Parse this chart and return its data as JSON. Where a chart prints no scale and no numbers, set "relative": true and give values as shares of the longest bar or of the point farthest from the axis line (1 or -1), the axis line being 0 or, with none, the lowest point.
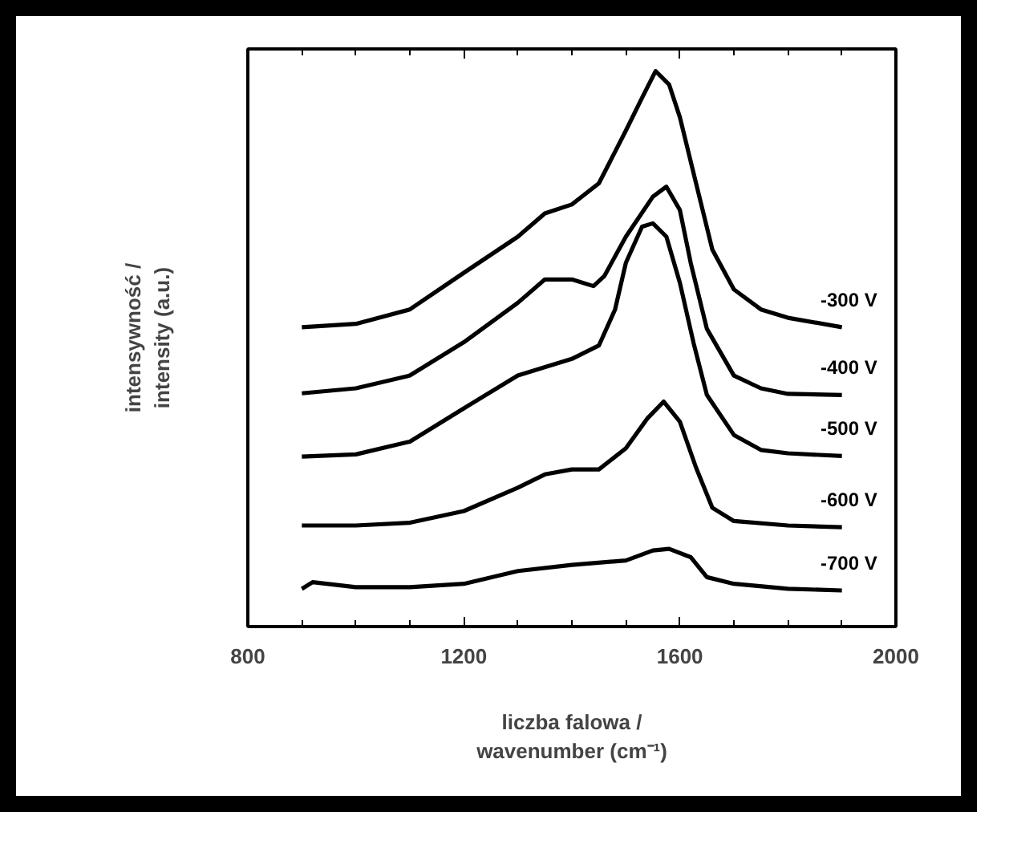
{
  "chart_data": {
    "type": "line",
    "relative": true,
    "xlabel": "liczba falowa /\nwavenumber (cm⁻¹)",
    "ylabel": "intensywność /\nintensity (a.u.)",
    "xlim": [
      800,
      2000
    ],
    "xticks": [
      800,
      1200,
      1600,
      2000
    ],
    "grid": false,
    "marker": "none",
    "line_style": "solid",
    "series": [
      {
        "name": "-300 V",
        "color": "#000000",
        "x": [
          900,
          1000,
          1100,
          1200,
          1300,
          1350,
          1400,
          1450,
          1500,
          1530,
          1555,
          1580,
          1600,
          1630,
          1660,
          1700,
          1750,
          1800,
          1900
        ],
        "values": [
          0.539,
          0.545,
          0.571,
          0.637,
          0.702,
          0.744,
          0.76,
          0.798,
          0.893,
          0.952,
          1.0,
          0.976,
          0.917,
          0.798,
          0.679,
          0.607,
          0.571,
          0.556,
          0.539
        ]
      },
      {
        "name": "-400 V",
        "color": "#000000",
        "x": [
          900,
          1000,
          1100,
          1200,
          1300,
          1350,
          1400,
          1440,
          1460,
          1500,
          1550,
          1575,
          1600,
          1620,
          1650,
          1700,
          1750,
          1800,
          1900
        ],
        "values": [
          0.42,
          0.429,
          0.452,
          0.512,
          0.583,
          0.625,
          0.625,
          0.613,
          0.631,
          0.702,
          0.774,
          0.792,
          0.75,
          0.655,
          0.536,
          0.452,
          0.429,
          0.419,
          0.417
        ]
      },
      {
        "name": "-500 V",
        "color": "#000000",
        "x": [
          900,
          1000,
          1100,
          1200,
          1300,
          1400,
          1450,
          1480,
          1500,
          1530,
          1550,
          1575,
          1600,
          1625,
          1650,
          1700,
          1750,
          1800,
          1900
        ],
        "values": [
          0.306,
          0.31,
          0.333,
          0.393,
          0.452,
          0.482,
          0.506,
          0.571,
          0.655,
          0.72,
          0.726,
          0.702,
          0.619,
          0.512,
          0.417,
          0.345,
          0.318,
          0.312,
          0.307
        ]
      },
      {
        "name": "-600 V",
        "color": "#000000",
        "x": [
          900,
          1000,
          1100,
          1200,
          1300,
          1350,
          1400,
          1450,
          1500,
          1540,
          1570,
          1600,
          1630,
          1660,
          1700,
          1800,
          1900
        ],
        "values": [
          0.182,
          0.182,
          0.187,
          0.208,
          0.25,
          0.274,
          0.283,
          0.283,
          0.321,
          0.375,
          0.405,
          0.369,
          0.286,
          0.214,
          0.19,
          0.182,
          0.179
        ]
      },
      {
        "name": "-700 V",
        "color": "#000000",
        "x": [
          900,
          920,
          1000,
          1100,
          1200,
          1300,
          1400,
          1500,
          1550,
          1580,
          1620,
          1650,
          1700,
          1800,
          1900
        ],
        "values": [
          0.068,
          0.08,
          0.071,
          0.071,
          0.077,
          0.1,
          0.111,
          0.119,
          0.137,
          0.14,
          0.125,
          0.089,
          0.077,
          0.068,
          0.065
        ]
      }
    ]
  }
}
